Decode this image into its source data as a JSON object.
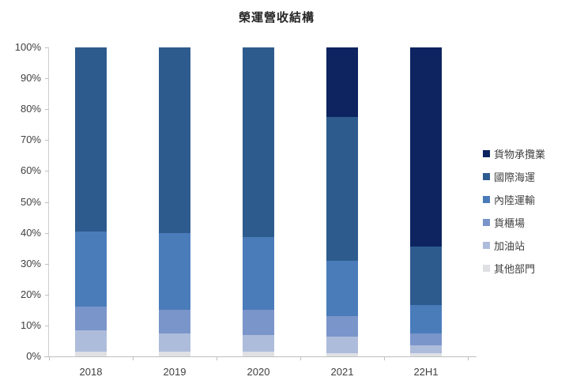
{
  "chart_data": {
    "type": "bar",
    "stacked": true,
    "percent": true,
    "title": "榮運營收結構",
    "categories": [
      "2018",
      "2019",
      "2020",
      "2021",
      "22H1"
    ],
    "series": [
      {
        "name": "貨物承攬業",
        "color": "#0D2460",
        "values": [
          0,
          0,
          0,
          22.5,
          64.5
        ]
      },
      {
        "name": "國際海運",
        "color": "#2E5B8E",
        "values": [
          59.5,
          60,
          61.5,
          46.5,
          19
        ]
      },
      {
        "name": "內陸運輸",
        "color": "#4A7CBA",
        "values": [
          24.5,
          25,
          23.5,
          18,
          9
        ]
      },
      {
        "name": "貨櫃場",
        "color": "#7A95CA",
        "values": [
          7.5,
          7.5,
          8,
          6.5,
          4
        ]
      },
      {
        "name": "加油站",
        "color": "#AEBCDB",
        "values": [
          7,
          6,
          5.5,
          5.5,
          2.5
        ]
      },
      {
        "name": "其他部門",
        "color": "#DFE0E4",
        "values": [
          1.5,
          1.5,
          1.5,
          1,
          1
        ]
      }
    ],
    "y_axis": {
      "min": 0,
      "max": 100,
      "tick_step": 10,
      "tick_labels": [
        "0%",
        "10%",
        "20%",
        "30%",
        "40%",
        "50%",
        "60%",
        "70%",
        "80%",
        "90%",
        "100%"
      ]
    },
    "legend_position": "right",
    "grid": false
  }
}
